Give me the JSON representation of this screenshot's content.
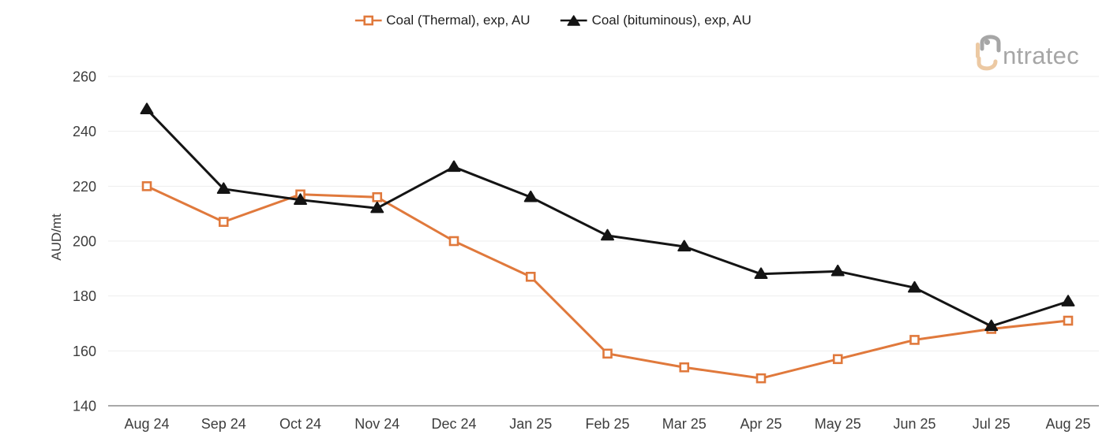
{
  "legend": {
    "items": [
      {
        "label": "Coal (Thermal), exp, AU",
        "color": "#E0793C",
        "marker": "square-hollow"
      },
      {
        "label": "Coal (bituminous), exp, AU",
        "color": "#141414",
        "marker": "triangle-filled"
      }
    ]
  },
  "logo": {
    "brand": "intratec",
    "text_after_mark": "ntratec",
    "gray": "#a6a6a6",
    "tan": "#ecc9a3"
  },
  "chart_data": {
    "type": "line",
    "title": "",
    "xlabel": "",
    "ylabel": "AUD/mt",
    "ylim": [
      140,
      260
    ],
    "yticks": [
      140,
      160,
      180,
      200,
      220,
      240,
      260
    ],
    "grid": "horizontal",
    "legend_position": "top-center",
    "categories": [
      "Aug 24",
      "Sep 24",
      "Oct 24",
      "Nov 24",
      "Dec 24",
      "Jan 25",
      "Feb 25",
      "Mar 25",
      "Apr 25",
      "May 25",
      "Jun 25",
      "Jul 25",
      "Aug 25"
    ],
    "series": [
      {
        "name": "Coal (Thermal), exp, AU",
        "color": "#E0793C",
        "marker": "square-hollow",
        "values": [
          220,
          207,
          217,
          216,
          200,
          187,
          159,
          154,
          150,
          157,
          164,
          168,
          171
        ]
      },
      {
        "name": "Coal (bituminous), exp, AU",
        "color": "#141414",
        "marker": "triangle-filled",
        "values": [
          248,
          219,
          215,
          212,
          227,
          216,
          202,
          198,
          188,
          189,
          183,
          169,
          178
        ]
      }
    ],
    "axis_colors": {
      "grid": "#ededed",
      "axis_line": "#8c8c8c",
      "tick_text": "#3d3d3d"
    }
  }
}
